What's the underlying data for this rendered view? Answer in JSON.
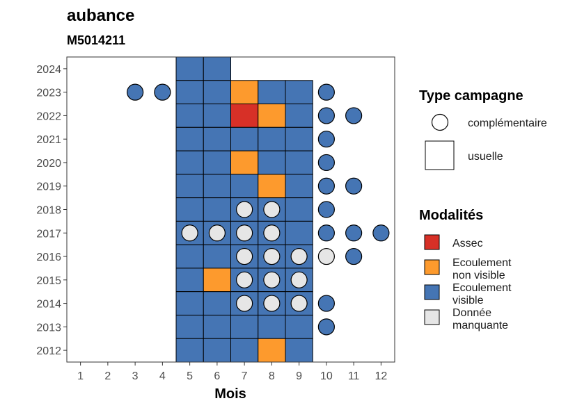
{
  "chart_data": {
    "type": "heatmap",
    "title": "aubance",
    "subtitle": "M5014211",
    "xlabel": "Mois",
    "ylabel": "",
    "x_ticks": [
      1,
      2,
      3,
      4,
      5,
      6,
      7,
      8,
      9,
      10,
      11,
      12
    ],
    "y_ticks": [
      2012,
      2013,
      2014,
      2015,
      2016,
      2017,
      2018,
      2019,
      2020,
      2021,
      2022,
      2023,
      2024
    ],
    "xlim": [
      0.5,
      12.5
    ],
    "ylim": [
      2011.5,
      2024.5
    ],
    "grid": false,
    "colors": {
      "Assec": "#d73027",
      "Ecoulement non visible": "#fd9a2d",
      "Ecoulement visible": "#4575b4",
      "Donnée manquante": "#e6e6e6"
    },
    "legend_type": {
      "title": "Type campagne",
      "entries": [
        {
          "key": "complementaire",
          "label": "complémentaire",
          "shape": "circle"
        },
        {
          "key": "usuelle",
          "label": "usuelle",
          "shape": "square"
        }
      ]
    },
    "legend_modalites": {
      "title": "Modalités",
      "entries": [
        {
          "key": "Assec",
          "lines": [
            "Assec"
          ]
        },
        {
          "key": "Ecoulement non visible",
          "lines": [
            "Ecoulement",
            "non visible"
          ]
        },
        {
          "key": "Ecoulement visible",
          "lines": [
            "Ecoulement",
            "visible"
          ]
        },
        {
          "key": "Donnée manquante",
          "lines": [
            "Donnée",
            "manquante"
          ]
        }
      ]
    },
    "legend_position": "right",
    "usuelle": [
      {
        "year": 2024,
        "months": [
          "Ecoulement visible",
          "Ecoulement visible",
          null,
          null,
          null
        ]
      },
      {
        "year": 2023,
        "months": [
          "Ecoulement visible",
          "Ecoulement visible",
          "Ecoulement non visible",
          "Ecoulement visible",
          "Ecoulement visible"
        ]
      },
      {
        "year": 2022,
        "months": [
          "Ecoulement visible",
          "Ecoulement visible",
          "Assec",
          "Ecoulement non visible",
          "Ecoulement visible"
        ]
      },
      {
        "year": 2021,
        "months": [
          "Ecoulement visible",
          "Ecoulement visible",
          "Ecoulement visible",
          "Ecoulement visible",
          "Ecoulement visible"
        ]
      },
      {
        "year": 2020,
        "months": [
          "Ecoulement visible",
          "Ecoulement visible",
          "Ecoulement non visible",
          "Ecoulement visible",
          "Ecoulement visible"
        ]
      },
      {
        "year": 2019,
        "months": [
          "Ecoulement visible",
          "Ecoulement visible",
          "Ecoulement visible",
          "Ecoulement non visible",
          "Ecoulement visible"
        ]
      },
      {
        "year": 2018,
        "months": [
          "Ecoulement visible",
          "Ecoulement visible",
          "Ecoulement visible",
          "Ecoulement visible",
          "Ecoulement visible"
        ]
      },
      {
        "year": 2017,
        "months": [
          "Ecoulement visible",
          "Ecoulement visible",
          "Ecoulement visible",
          "Ecoulement visible",
          "Ecoulement visible"
        ]
      },
      {
        "year": 2016,
        "months": [
          "Ecoulement visible",
          "Ecoulement visible",
          "Ecoulement visible",
          "Ecoulement visible",
          "Ecoulement visible"
        ]
      },
      {
        "year": 2015,
        "months": [
          "Ecoulement visible",
          "Ecoulement non visible",
          "Ecoulement visible",
          "Ecoulement visible",
          "Ecoulement visible"
        ]
      },
      {
        "year": 2014,
        "months": [
          "Ecoulement visible",
          "Ecoulement visible",
          "Ecoulement visible",
          "Ecoulement visible",
          "Ecoulement visible"
        ]
      },
      {
        "year": 2013,
        "months": [
          "Ecoulement visible",
          "Ecoulement visible",
          "Ecoulement visible",
          "Ecoulement visible",
          "Ecoulement visible"
        ]
      },
      {
        "year": 2012,
        "months": [
          "Ecoulement visible",
          "Ecoulement visible",
          "Ecoulement visible",
          "Ecoulement non visible",
          "Ecoulement visible"
        ]
      }
    ],
    "usuelle_months": [
      5,
      6,
      7,
      8,
      9
    ],
    "complementaire": [
      {
        "year": 2023,
        "month": 3,
        "v": "Ecoulement visible"
      },
      {
        "year": 2023,
        "month": 4,
        "v": "Ecoulement visible"
      },
      {
        "year": 2023,
        "month": 10,
        "v": "Ecoulement visible"
      },
      {
        "year": 2022,
        "month": 10,
        "v": "Ecoulement visible"
      },
      {
        "year": 2022,
        "month": 11,
        "v": "Ecoulement visible"
      },
      {
        "year": 2021,
        "month": 10,
        "v": "Ecoulement visible"
      },
      {
        "year": 2020,
        "month": 10,
        "v": "Ecoulement visible"
      },
      {
        "year": 2019,
        "month": 10,
        "v": "Ecoulement visible"
      },
      {
        "year": 2019,
        "month": 11,
        "v": "Ecoulement visible"
      },
      {
        "year": 2018,
        "month": 7,
        "v": "Donnée manquante"
      },
      {
        "year": 2018,
        "month": 8,
        "v": "Donnée manquante"
      },
      {
        "year": 2018,
        "month": 10,
        "v": "Ecoulement visible"
      },
      {
        "year": 2017,
        "month": 5,
        "v": "Donnée manquante"
      },
      {
        "year": 2017,
        "month": 6,
        "v": "Donnée manquante"
      },
      {
        "year": 2017,
        "month": 7,
        "v": "Donnée manquante"
      },
      {
        "year": 2017,
        "month": 8,
        "v": "Donnée manquante"
      },
      {
        "year": 2017,
        "month": 10,
        "v": "Ecoulement visible"
      },
      {
        "year": 2017,
        "month": 11,
        "v": "Ecoulement visible"
      },
      {
        "year": 2017,
        "month": 12,
        "v": "Ecoulement visible"
      },
      {
        "year": 2016,
        "month": 7,
        "v": "Donnée manquante"
      },
      {
        "year": 2016,
        "month": 8,
        "v": "Donnée manquante"
      },
      {
        "year": 2016,
        "month": 9,
        "v": "Donnée manquante"
      },
      {
        "year": 2016,
        "month": 10,
        "v": "Donnée manquante"
      },
      {
        "year": 2016,
        "month": 11,
        "v": "Ecoulement visible"
      },
      {
        "year": 2015,
        "month": 7,
        "v": "Donnée manquante"
      },
      {
        "year": 2015,
        "month": 8,
        "v": "Donnée manquante"
      },
      {
        "year": 2015,
        "month": 9,
        "v": "Donnée manquante"
      },
      {
        "year": 2014,
        "month": 7,
        "v": "Donnée manquante"
      },
      {
        "year": 2014,
        "month": 8,
        "v": "Donnée manquante"
      },
      {
        "year": 2014,
        "month": 9,
        "v": "Donnée manquante"
      },
      {
        "year": 2014,
        "month": 10,
        "v": "Ecoulement visible"
      },
      {
        "year": 2013,
        "month": 10,
        "v": "Ecoulement visible"
      }
    ]
  }
}
